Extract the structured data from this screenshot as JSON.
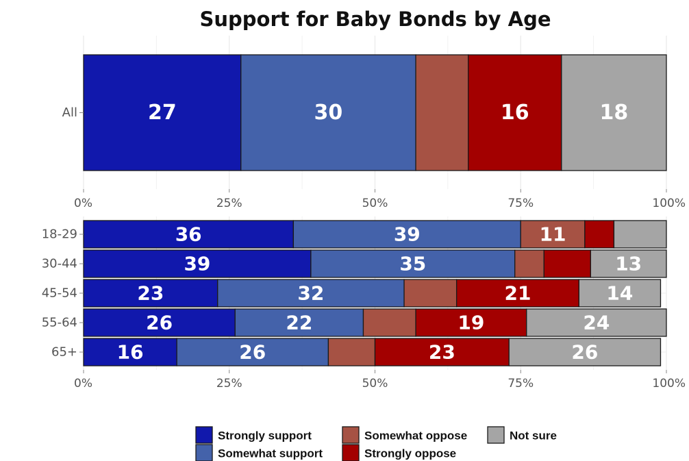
{
  "chart_data": {
    "type": "bar",
    "orientation": "horizontal",
    "stacked": true,
    "title": "Support for Baby Bonds by Age",
    "legend_position": "bottom",
    "grid": true,
    "xlim": [
      0,
      100
    ],
    "xticks": [
      "0%",
      "25%",
      "50%",
      "75%",
      "100%"
    ],
    "series": [
      {
        "name": "Strongly support",
        "color": "#1118ac"
      },
      {
        "name": "Somewhat support",
        "color": "#4462aa"
      },
      {
        "name": "Somewhat oppose",
        "color": "#a65244"
      },
      {
        "name": "Strongly oppose",
        "color": "#a30000"
      },
      {
        "name": "Not sure",
        "color": "#a5a5a5"
      }
    ],
    "panels": [
      {
        "categories": [
          "All"
        ],
        "rows": [
          {
            "values": [
              27,
              30,
              9,
              16,
              18
            ],
            "labels": [
              "27",
              "30",
              "",
              "16",
              "18"
            ]
          }
        ]
      },
      {
        "categories": [
          "18-29",
          "30-44",
          "45-54",
          "55-64",
          "65+"
        ],
        "rows": [
          {
            "values": [
              36,
              39,
              11,
              5,
              9
            ],
            "labels": [
              "36",
              "39",
              "11",
              "",
              ""
            ]
          },
          {
            "values": [
              39,
              35,
              5,
              8,
              13
            ],
            "labels": [
              "39",
              "35",
              "",
              "",
              "13"
            ]
          },
          {
            "values": [
              23,
              32,
              9,
              21,
              14
            ],
            "labels": [
              "23",
              "32",
              "",
              "21",
              "14"
            ]
          },
          {
            "values": [
              26,
              22,
              9,
              19,
              24
            ],
            "labels": [
              "26",
              "22",
              "",
              "19",
              "24"
            ]
          },
          {
            "values": [
              16,
              26,
              8,
              23,
              26
            ],
            "labels": [
              "16",
              "26",
              "",
              "23",
              "26"
            ]
          }
        ]
      }
    ]
  }
}
